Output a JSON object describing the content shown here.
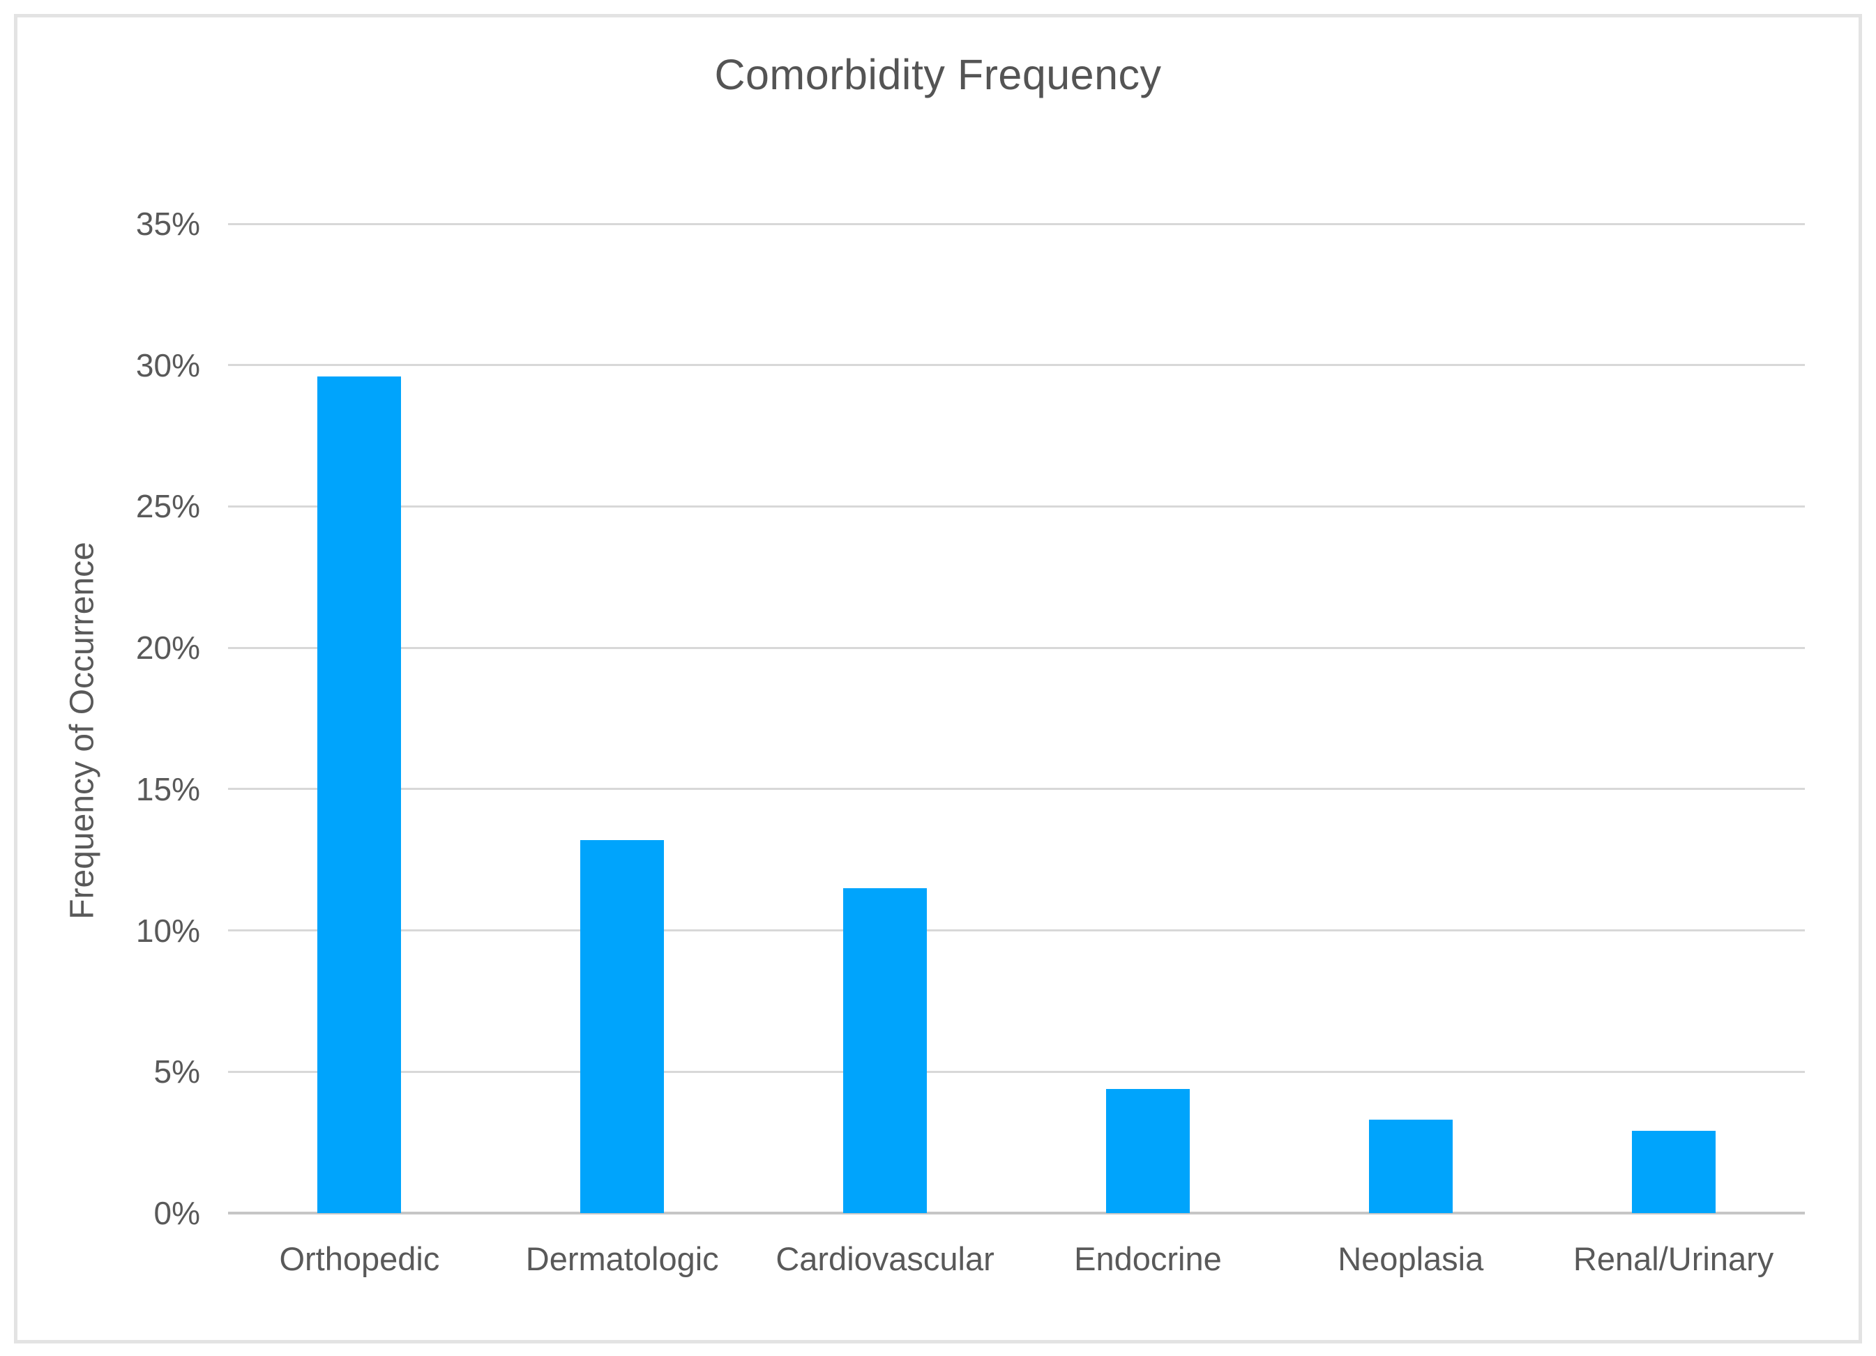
{
  "chart_data": {
    "type": "bar",
    "title": "Comorbidity Frequency",
    "xlabel": "",
    "ylabel": "Frequency of Occurrence",
    "categories": [
      "Orthopedic",
      "Dermatologic",
      "Cardiovascular",
      "Endocrine",
      "Neoplasia",
      "Renal/Urinary"
    ],
    "values": [
      29.6,
      13.2,
      11.5,
      4.4,
      3.3,
      2.9
    ],
    "unit": "%",
    "ylim": [
      0,
      35
    ],
    "yticks": [
      0,
      5,
      10,
      15,
      20,
      25,
      30,
      35
    ],
    "ytick_suffix": "%",
    "grid": true,
    "legend_position": "none",
    "bar_color": "#00a4fc",
    "grid_color": "#d8d8d8",
    "axis_line_color": "#c6c6c6",
    "text_color": "#595959",
    "title_color": "#545454",
    "background_color": "#ffffff",
    "border_color": "#e3e3e3"
  }
}
